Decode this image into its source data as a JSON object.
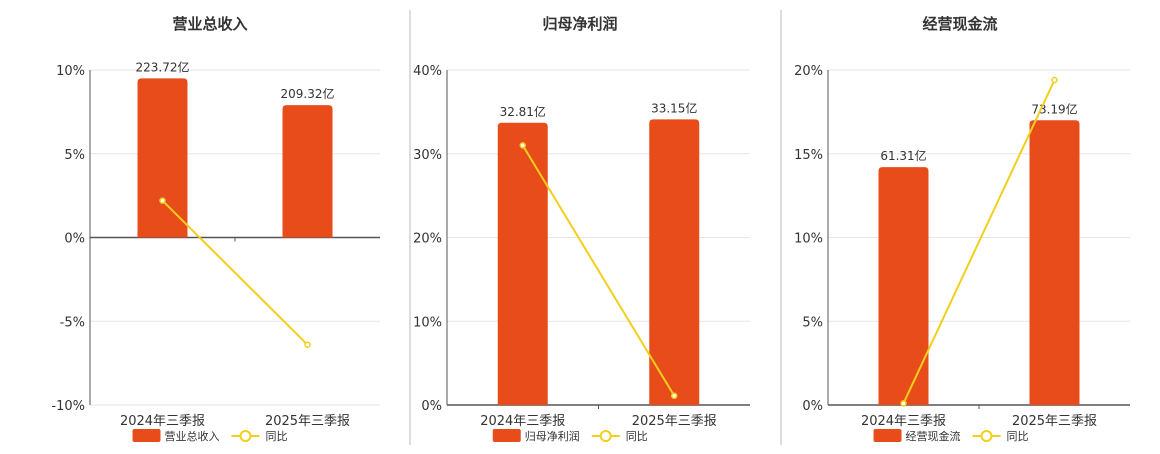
{
  "colors": {
    "bar": "#e84c1a",
    "line": "#f2cf1c",
    "axis": "#555555",
    "grid": "#e6e6e6",
    "separator": "#bbbbbb",
    "text": "#333333"
  },
  "chart_data": [
    {
      "type": "bar",
      "title": "营业总收入",
      "categories": [
        "2024年三季报",
        "2025年三季报"
      ],
      "bar_labels": [
        "223.72亿",
        "209.32亿"
      ],
      "bar_values_yi": [
        223.72,
        209.32
      ],
      "bar_axis_value": [
        9.5,
        7.9
      ],
      "line_values": [
        2.2,
        -6.4
      ],
      "ylim": [
        -10,
        10
      ],
      "yticks": [
        -10,
        -5,
        0,
        5,
        10
      ],
      "ytick_labels": [
        "-10%",
        "-5%",
        "0%",
        "5%",
        "10%"
      ],
      "legend": [
        "营业总收入",
        "同比"
      ],
      "legend_position": "bottom",
      "grid": true
    },
    {
      "type": "bar",
      "title": "归母净利润",
      "categories": [
        "2024年三季报",
        "2025年三季报"
      ],
      "bar_labels": [
        "32.81亿",
        "33.15亿"
      ],
      "bar_values_yi": [
        32.81,
        33.15
      ],
      "bar_axis_value": [
        33.7,
        34.1
      ],
      "line_values": [
        31.0,
        1.1
      ],
      "ylim": [
        0,
        40
      ],
      "yticks": [
        0,
        10,
        20,
        30,
        40
      ],
      "ytick_labels": [
        "0%",
        "10%",
        "20%",
        "30%",
        "40%"
      ],
      "legend": [
        "归母净利润",
        "同比"
      ],
      "legend_position": "bottom",
      "grid": true
    },
    {
      "type": "bar",
      "title": "经营现金流",
      "categories": [
        "2024年三季报",
        "2025年三季报"
      ],
      "bar_labels": [
        "61.31亿",
        "73.19亿"
      ],
      "bar_values_yi": [
        61.31,
        73.19
      ],
      "bar_axis_value": [
        14.2,
        17.0
      ],
      "line_values": [
        0.1,
        19.4
      ],
      "ylim": [
        0,
        20
      ],
      "yticks": [
        0,
        5,
        10,
        15,
        20
      ],
      "ytick_labels": [
        "0%",
        "5%",
        "10%",
        "15%",
        "20%"
      ],
      "legend": [
        "经营现金流",
        "同比"
      ],
      "legend_position": "bottom",
      "grid": true
    }
  ]
}
